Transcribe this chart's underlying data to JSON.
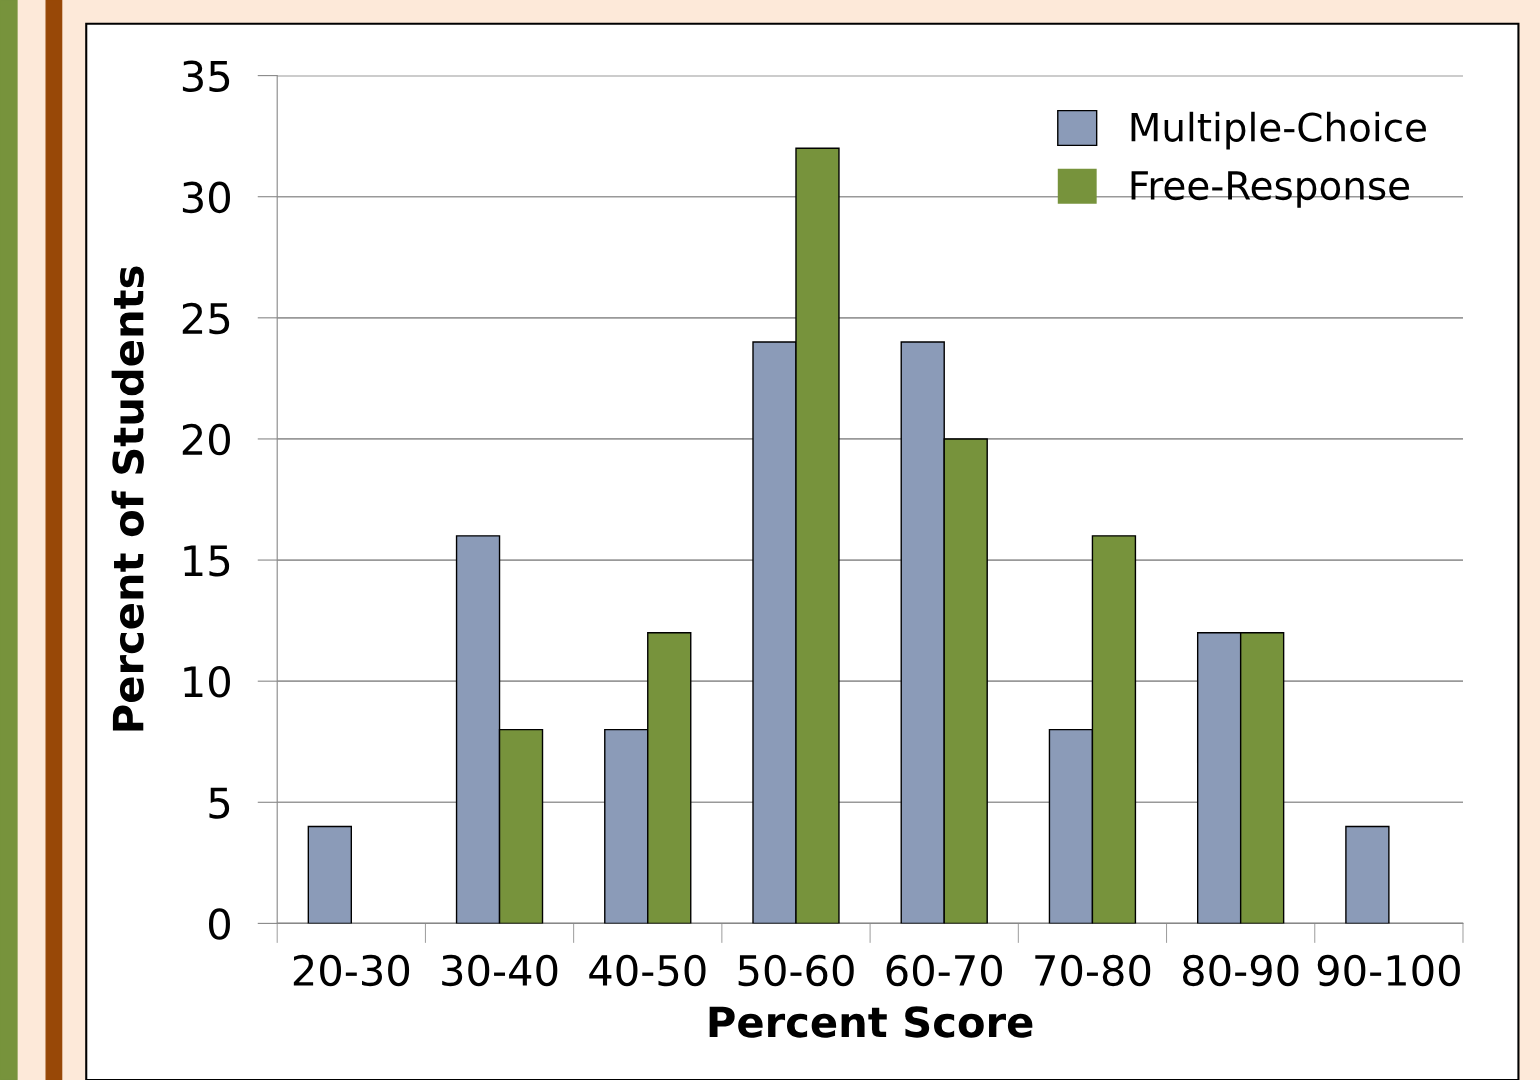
{
  "chart_data": {
    "type": "bar",
    "xlabel": "Percent Score",
    "ylabel": "Percent of Students",
    "categories": [
      "20-30",
      "30-40",
      "40-50",
      "50-60",
      "60-70",
      "70-80",
      "80-90",
      "90-100"
    ],
    "series": [
      {
        "name": "Multiple-Choice",
        "color": "#8b9bb8",
        "values": [
          4,
          16,
          8,
          24,
          24,
          8,
          12,
          4
        ]
      },
      {
        "name": "Free-Response",
        "color": "#77933c",
        "values": [
          0,
          8,
          12,
          32,
          20,
          16,
          12,
          null
        ]
      }
    ],
    "ylim": [
      0,
      35
    ],
    "yticks": [
      0,
      5,
      10,
      15,
      20,
      25,
      30,
      35
    ],
    "grid": "y",
    "legend": "top right"
  }
}
